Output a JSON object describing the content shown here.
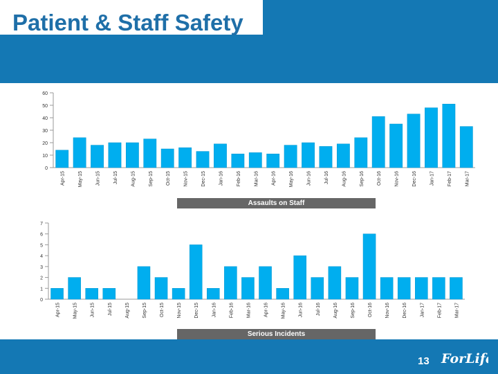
{
  "page": {
    "title": "Patient & Staff Safety",
    "page_number": "13",
    "brand": "ForLife",
    "colors": {
      "header": "#1478b4",
      "bar": "#00aeef",
      "axis": "#999999",
      "caption_bg": "#666666",
      "title": "#1f6fa8"
    }
  },
  "chart_data": [
    {
      "type": "bar",
      "title": "Assaults on Staff",
      "categories": [
        "Apr-15",
        "May-15",
        "Jun-15",
        "Jul-15",
        "Aug-15",
        "Sep-15",
        "Oct-15",
        "Nov-15",
        "Dec-15",
        "Jan-16",
        "Feb-16",
        "Mar-16",
        "Apr-16",
        "May-16",
        "Jun-16",
        "Jul-16",
        "Aug-16",
        "Sep-16",
        "Oct-16",
        "Nov-16",
        "Dec-16",
        "Jan-17",
        "Feb-17",
        "Mar-17"
      ],
      "values": [
        14,
        24,
        18,
        20,
        20,
        23,
        15,
        16,
        13,
        19,
        11,
        12,
        11,
        18,
        20,
        17,
        19,
        24,
        41,
        35,
        43,
        48,
        51,
        33
      ],
      "ylim": [
        0,
        60
      ],
      "yticks": [
        0,
        10,
        20,
        30,
        40,
        50,
        60
      ],
      "xlabel": "",
      "ylabel": "",
      "grid": false
    },
    {
      "type": "bar",
      "title": "Serious Incidents",
      "categories": [
        "Apr-15",
        "May-15",
        "Jun-15",
        "Jul-15",
        "Aug-15",
        "Sep-15",
        "Oct-15",
        "Nov-15",
        "Dec-15",
        "Jan-16",
        "Feb-16",
        "Mar-16",
        "Apr-16",
        "May-16",
        "Jun-16",
        "Jul-16",
        "Aug-16",
        "Sep-16",
        "Oct-16",
        "Nov-16",
        "Dec-16",
        "Jan-17",
        "Feb-17",
        "Mar-17"
      ],
      "values": [
        1,
        2,
        1,
        1,
        0,
        3,
        2,
        1,
        5,
        1,
        3,
        2,
        3,
        1,
        4,
        2,
        3,
        2,
        6,
        2,
        2,
        2,
        2,
        2
      ],
      "ylim": [
        0,
        7
      ],
      "yticks": [
        0,
        1,
        2,
        3,
        4,
        5,
        6,
        7
      ],
      "xlabel": "",
      "ylabel": "",
      "grid": false
    }
  ]
}
